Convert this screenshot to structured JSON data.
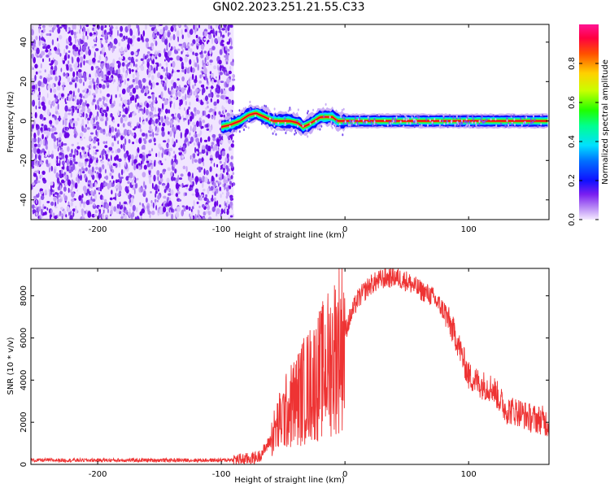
{
  "title": "GN02.2023.251.21.55.C33",
  "chart_data": [
    {
      "type": "heatmap",
      "title": "",
      "xlabel": "Height of straight line (km)",
      "ylabel": "Frequency (Hz)",
      "xlim": [
        -254,
        165
      ],
      "ylim": [
        -50,
        49
      ],
      "x_ticks": [
        -200,
        -100,
        0,
        100
      ],
      "y_ticks": [
        -40,
        -20,
        0,
        20,
        40
      ],
      "noise_region_x": [
        -254,
        -90
      ],
      "signal": {
        "x": [
          -100,
          -93,
          -85,
          -78,
          -72,
          -65,
          -58,
          -50,
          -44,
          -38,
          -34,
          -30,
          -25,
          -20,
          -15,
          -10,
          -6,
          0,
          50,
          100,
          165
        ],
        "y": [
          -3,
          -2,
          0,
          3,
          4,
          2,
          0,
          0,
          0,
          -1,
          -3,
          -2,
          0,
          2,
          2,
          2,
          0,
          0,
          0,
          0,
          0
        ]
      },
      "colorbar": {
        "label": "Normalized spectral amplitude",
        "range": [
          0.0,
          1.0
        ],
        "ticks": [
          0.0,
          0.2,
          0.4,
          0.6,
          0.8
        ]
      }
    },
    {
      "type": "line",
      "title": "",
      "xlabel": "Height of straight line (km)",
      "ylabel": "SNR (10 * v/v)",
      "xlim": [
        -254,
        165
      ],
      "ylim": [
        0,
        9300
      ],
      "x_ticks": [
        -200,
        -100,
        0,
        100
      ],
      "y_ticks": [
        0,
        2000,
        4000,
        6000,
        8000
      ],
      "color": "#ee3333",
      "series": [
        {
          "x": [
            -254,
            -200,
            -150,
            -100,
            -80,
            -70,
            -65,
            -60,
            -55,
            -50,
            -45,
            -40,
            -35,
            -30,
            -25,
            -20,
            -15,
            -10,
            -5,
            0,
            5,
            10,
            20,
            30,
            40,
            50,
            60,
            70,
            80,
            90,
            100,
            110,
            120,
            130,
            140,
            150,
            160,
            165
          ],
          "y": [
            200,
            200,
            200,
            200,
            250,
            350,
            700,
            1200,
            1800,
            2300,
            2700,
            3000,
            3400,
            3700,
            4000,
            4300,
            4700,
            5100,
            5600,
            6300,
            7100,
            7800,
            8500,
            8800,
            8900,
            8700,
            8300,
            8000,
            7300,
            6000,
            4200,
            3800,
            3600,
            2600,
            2500,
            2200,
            2100,
            1900
          ]
        }
      ]
    }
  ]
}
